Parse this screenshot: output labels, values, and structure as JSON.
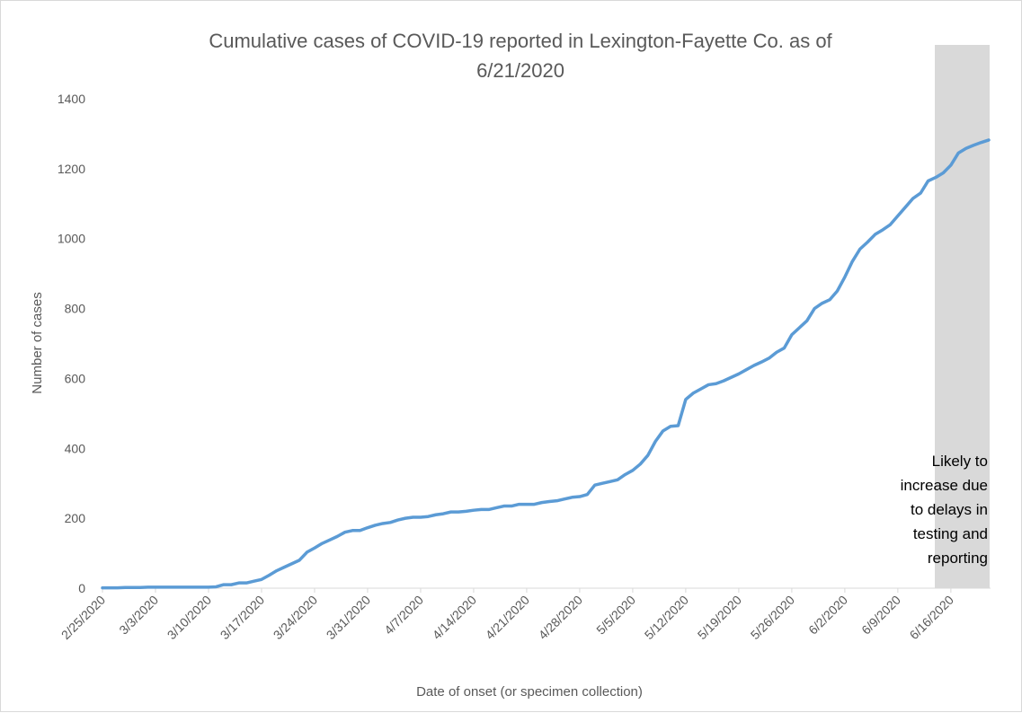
{
  "chart_data": {
    "type": "line",
    "title_line1": "Cumulative cases of COVID-19 reported in Lexington-Fayette Co.  as of",
    "title_line2": "6/21/2020",
    "xlabel": "Date of onset (or specimen collection)",
    "ylabel": "Number of cases",
    "ylim": [
      0,
      1400
    ],
    "yticks": [
      0,
      200,
      400,
      600,
      800,
      1000,
      1200,
      1400
    ],
    "grid": false,
    "x_tick_labels": [
      "2/25/2020",
      "3/3/2020",
      "3/10/2020",
      "3/17/2020",
      "3/24/2020",
      "3/31/2020",
      "4/7/2020",
      "4/14/2020",
      "4/21/2020",
      "4/28/2020",
      "5/5/2020",
      "5/12/2020",
      "5/19/2020",
      "5/26/2020",
      "6/2/2020",
      "6/9/2020",
      "6/16/2020"
    ],
    "series": [
      {
        "color": "#5b9bd5",
        "x": [
          "2/25/2020",
          "2/26/2020",
          "2/27/2020",
          "2/28/2020",
          "2/29/2020",
          "3/1/2020",
          "3/2/2020",
          "3/3/2020",
          "3/4/2020",
          "3/5/2020",
          "3/6/2020",
          "3/7/2020",
          "3/8/2020",
          "3/9/2020",
          "3/10/2020",
          "3/11/2020",
          "3/12/2020",
          "3/13/2020",
          "3/14/2020",
          "3/15/2020",
          "3/16/2020",
          "3/17/2020",
          "3/18/2020",
          "3/19/2020",
          "3/20/2020",
          "3/21/2020",
          "3/22/2020",
          "3/23/2020",
          "3/24/2020",
          "3/25/2020",
          "3/26/2020",
          "3/27/2020",
          "3/28/2020",
          "3/29/2020",
          "3/30/2020",
          "3/31/2020",
          "4/1/2020",
          "4/2/2020",
          "4/3/2020",
          "4/4/2020",
          "4/5/2020",
          "4/6/2020",
          "4/7/2020",
          "4/8/2020",
          "4/9/2020",
          "4/10/2020",
          "4/11/2020",
          "4/12/2020",
          "4/13/2020",
          "4/14/2020",
          "4/15/2020",
          "4/16/2020",
          "4/17/2020",
          "4/18/2020",
          "4/19/2020",
          "4/20/2020",
          "4/21/2020",
          "4/22/2020",
          "4/23/2020",
          "4/24/2020",
          "4/25/2020",
          "4/26/2020",
          "4/27/2020",
          "4/28/2020",
          "4/29/2020",
          "4/30/2020",
          "5/1/2020",
          "5/2/2020",
          "5/3/2020",
          "5/4/2020",
          "5/5/2020",
          "5/6/2020",
          "5/7/2020",
          "5/8/2020",
          "5/9/2020",
          "5/10/2020",
          "5/11/2020",
          "5/12/2020",
          "5/13/2020",
          "5/14/2020",
          "5/15/2020",
          "5/16/2020",
          "5/17/2020",
          "5/18/2020",
          "5/19/2020",
          "5/20/2020",
          "5/21/2020",
          "5/22/2020",
          "5/23/2020",
          "5/24/2020",
          "5/25/2020",
          "5/26/2020",
          "5/27/2020",
          "5/28/2020",
          "5/29/2020",
          "5/30/2020",
          "5/31/2020",
          "6/1/2020",
          "6/2/2020",
          "6/3/2020",
          "6/4/2020",
          "6/5/2020",
          "6/6/2020",
          "6/7/2020",
          "6/8/2020",
          "6/9/2020",
          "6/10/2020",
          "6/11/2020",
          "6/12/2020",
          "6/13/2020",
          "6/14/2020",
          "6/15/2020",
          "6/16/2020",
          "6/17/2020",
          "6/18/2020",
          "6/19/2020",
          "6/20/2020",
          "6/21/2020"
        ],
        "values": [
          1,
          1,
          1,
          2,
          2,
          2,
          3,
          3,
          3,
          3,
          3,
          3,
          3,
          3,
          3,
          4,
          10,
          10,
          15,
          15,
          20,
          25,
          37,
          50,
          60,
          70,
          80,
          103,
          115,
          128,
          138,
          148,
          160,
          165,
          165,
          173,
          180,
          185,
          188,
          195,
          200,
          203,
          203,
          205,
          210,
          213,
          218,
          218,
          220,
          223,
          225,
          225,
          230,
          235,
          235,
          240,
          240,
          240,
          245,
          248,
          250,
          255,
          260,
          262,
          268,
          295,
          300,
          305,
          310,
          325,
          337,
          355,
          380,
          420,
          450,
          463,
          465,
          540,
          558,
          570,
          582,
          585,
          593,
          603,
          613,
          625,
          637,
          647,
          658,
          675,
          687,
          725,
          745,
          765,
          800,
          815,
          825,
          850,
          890,
          935,
          970,
          990,
          1012,
          1025,
          1040,
          1065,
          1090,
          1115,
          1130,
          1165,
          1175,
          1188,
          1210,
          1245,
          1258,
          1267,
          1275,
          1282
        ]
      }
    ],
    "shaded_region": {
      "x_start": "6/14/2020",
      "x_end": "6/21/2020",
      "color": "#d9d9d9",
      "annotation": [
        "Likely to",
        "increase due",
        "to delays in",
        "testing and",
        "reporting"
      ]
    }
  }
}
